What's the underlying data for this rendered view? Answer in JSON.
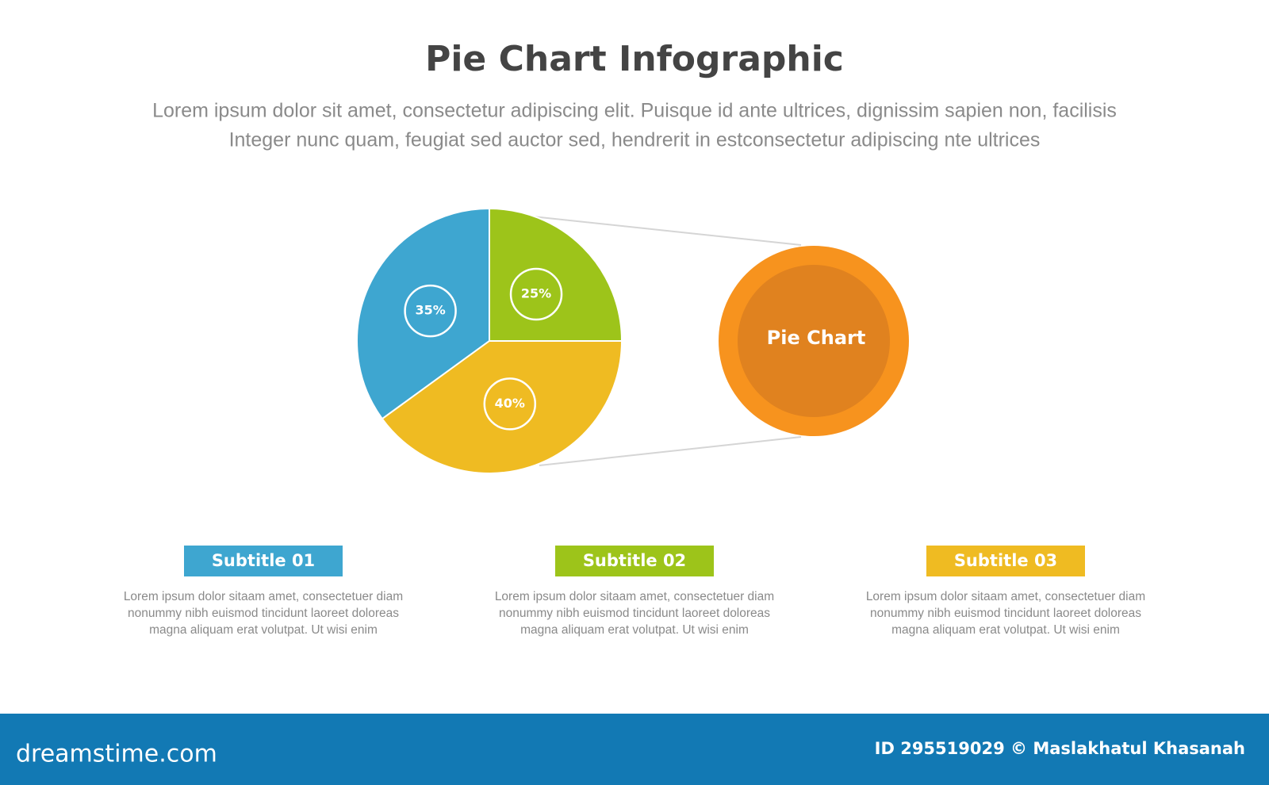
{
  "chart_data": {
    "type": "pie",
    "title": "Pie Chart Infographic",
    "subtitle_lines": [
      "Lorem ipsum dolor sit amet, consectetur adipiscing elit. Puisque id ante ultrices, dignissim sapien non, facilisis",
      "Integer nunc quam, feugiat sed auctor sed, hendrerit in estconsectetur adipiscing nte ultrices"
    ],
    "categories": [
      "Subtitle 01",
      "Subtitle 02",
      "Subtitle 03"
    ],
    "values": [
      35,
      25,
      40
    ],
    "value_labels": [
      "35%",
      "25%",
      "40%"
    ],
    "colors": [
      "#3ea6d0",
      "#9dc41a",
      "#efbb22"
    ]
  },
  "callout": {
    "label": "Pie Chart"
  },
  "captions": [
    [
      "Lorem ipsum dolor sitaam amet, consectetuer diam",
      "nonummy  nibh euismod tincidunt laoreet doloreas",
      "magna aliquam erat volutpat. Ut wisi enim"
    ],
    [
      "Lorem ipsum dolor sitaam amet, consectetuer diam",
      "nonummy  nibh euismod tincidunt laoreet doloreas",
      "magna aliquam erat volutpat. Ut wisi enim"
    ],
    [
      "Lorem ipsum dolor sitaam amet, consectetuer diam",
      "nonummy  nibh euismod tincidunt laoreet doloreas",
      "magna aliquam erat volutpat. Ut wisi enim"
    ]
  ],
  "footer": {
    "site": "dreamstime.com",
    "credit": "ID 295519029 © Maslakhatul Khasanah"
  }
}
